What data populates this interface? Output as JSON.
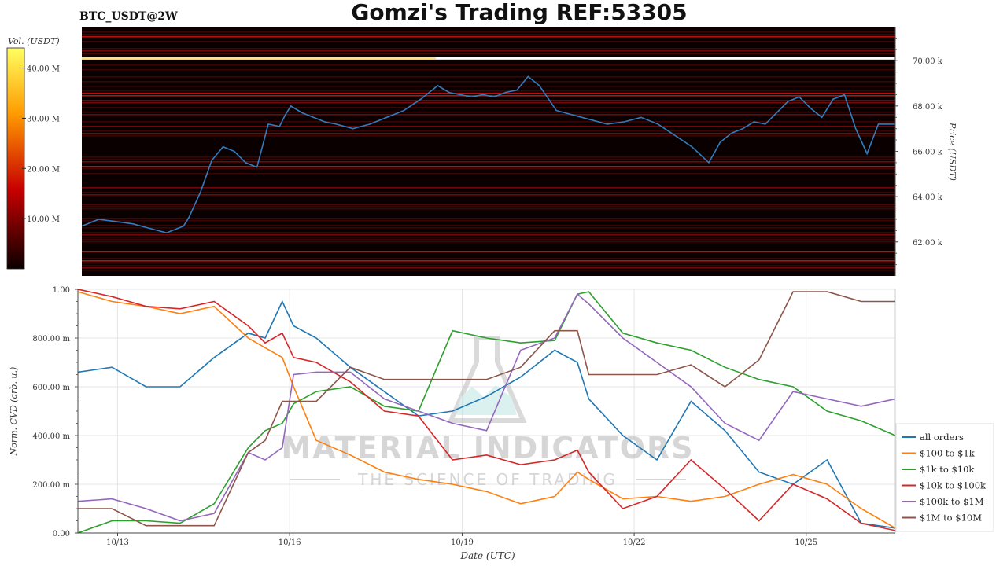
{
  "header": {
    "symbol": "BTC_USDT@2W",
    "title": "Gomzi's Trading REF:53305"
  },
  "watermark": {
    "line1": "MATERIAL INDICATORS",
    "line2": "THE SCIENCE OF TRADING"
  },
  "chart_data": [
    {
      "type": "heatmap",
      "title": "",
      "xlabel": "",
      "ylabel": "Price (USDT)",
      "ylim": [
        60500,
        71500
      ],
      "ytick_values": [
        62000,
        64000,
        66000,
        68000,
        70000
      ],
      "ytick_labels": [
        "62.00 k",
        "64.00 k",
        "66.00 k",
        "68.00 k",
        "70.00 k"
      ],
      "colorbar": {
        "label": "Vol. (USDT)",
        "range": [
          0,
          44000000
        ],
        "tick_values": [
          10000000,
          20000000,
          30000000,
          40000000
        ],
        "tick_labels": [
          "10.00 M",
          "20.00 M",
          "30.00 M",
          "40.00 M"
        ],
        "colormap": "hot"
      },
      "xlim": [
        0,
        14.4
      ],
      "price_series": {
        "name": "",
        "color": "#2f7ec1",
        "x": [
          0,
          0.3,
          0.6,
          0.9,
          1.2,
          1.5,
          1.8,
          1.9,
          2.1,
          2.3,
          2.5,
          2.7,
          2.9,
          3.1,
          3.3,
          3.5,
          3.6,
          3.7,
          3.9,
          4.1,
          4.3,
          4.5,
          4.8,
          5.1,
          5.4,
          5.7,
          6.0,
          6.3,
          6.5,
          6.7,
          6.9,
          7.1,
          7.3,
          7.5,
          7.7,
          7.9,
          8.1,
          8.4,
          8.7,
          9.0,
          9.3,
          9.6,
          9.9,
          10.2,
          10.5,
          10.8,
          11.1,
          11.3,
          11.5,
          11.7,
          11.9,
          12.1,
          12.3,
          12.5,
          12.7,
          12.9,
          13.1,
          13.3,
          13.5,
          13.7,
          13.9,
          14.1,
          14.4
        ],
        "y": [
          62700,
          63000,
          62900,
          62800,
          62600,
          62400,
          62700,
          63100,
          64200,
          65600,
          66200,
          66000,
          65500,
          65300,
          67200,
          67100,
          67600,
          68000,
          67700,
          67500,
          67300,
          67200,
          67000,
          67200,
          67500,
          67800,
          68300,
          68900,
          68600,
          68500,
          68400,
          68500,
          68400,
          68600,
          68700,
          69300,
          68900,
          67800,
          67600,
          67400,
          67200,
          67300,
          67500,
          67200,
          66700,
          66200,
          65500,
          66400,
          66800,
          67000,
          67300,
          67200,
          67700,
          68200,
          68400,
          67900,
          67500,
          68300,
          68500,
          67000,
          65900,
          67200,
          67200
        ]
      }
    },
    {
      "type": "line",
      "title": "",
      "xlabel": "Date (UTC)",
      "ylabel": "Norm. CVD (arb. u.)",
      "ylim": [
        0,
        1
      ],
      "xlim": [
        0,
        14.4
      ],
      "ytick_values": [
        0,
        0.2,
        0.4,
        0.6,
        0.8,
        1.0
      ],
      "ytick_labels": [
        "0.00",
        "200.00 m",
        "400.00 m",
        "600.00 m",
        "800.00 m",
        "1.00"
      ],
      "xtick_values": [
        0.7,
        3.73,
        6.77,
        9.8,
        12.83
      ],
      "xtick_labels": [
        "10/13",
        "10/16",
        "10/19",
        "10/22",
        "10/25"
      ],
      "grid": true,
      "legend_position": "bottom-right",
      "x": [
        0,
        0.6,
        1.2,
        1.8,
        2.4,
        3.0,
        3.3,
        3.6,
        3.8,
        4.2,
        4.8,
        5.4,
        6.0,
        6.6,
        7.2,
        7.8,
        8.4,
        8.8,
        9.0,
        9.6,
        10.2,
        10.8,
        11.4,
        12.0,
        12.6,
        13.2,
        13.8,
        14.4
      ],
      "series": [
        {
          "name": "all orders",
          "color": "#1f77b4",
          "values": [
            0.66,
            0.68,
            0.6,
            0.6,
            0.72,
            0.82,
            0.8,
            0.95,
            0.85,
            0.8,
            0.68,
            0.58,
            0.48,
            0.5,
            0.56,
            0.64,
            0.75,
            0.7,
            0.55,
            0.4,
            0.3,
            0.54,
            0.42,
            0.25,
            0.2,
            0.3,
            0.04,
            0.02
          ]
        },
        {
          "name": "$100 to $1k",
          "color": "#ff7f0e",
          "values": [
            0.99,
            0.95,
            0.93,
            0.9,
            0.93,
            0.8,
            0.76,
            0.72,
            0.6,
            0.38,
            0.32,
            0.25,
            0.22,
            0.2,
            0.17,
            0.12,
            0.15,
            0.25,
            0.22,
            0.14,
            0.15,
            0.13,
            0.15,
            0.2,
            0.24,
            0.2,
            0.1,
            0.02
          ]
        },
        {
          "name": "$1k to $10k",
          "color": "#2ca02c",
          "values": [
            0.0,
            0.05,
            0.05,
            0.04,
            0.12,
            0.35,
            0.42,
            0.45,
            0.53,
            0.58,
            0.6,
            0.52,
            0.5,
            0.83,
            0.8,
            0.78,
            0.79,
            0.98,
            0.99,
            0.82,
            0.78,
            0.75,
            0.68,
            0.63,
            0.6,
            0.5,
            0.46,
            0.4
          ]
        },
        {
          "name": "$10k to $100k",
          "color": "#d62728",
          "values": [
            1.0,
            0.97,
            0.93,
            0.92,
            0.95,
            0.85,
            0.78,
            0.82,
            0.72,
            0.7,
            0.62,
            0.5,
            0.48,
            0.3,
            0.32,
            0.28,
            0.3,
            0.34,
            0.25,
            0.1,
            0.15,
            0.3,
            0.18,
            0.05,
            0.2,
            0.14,
            0.04,
            0.01
          ]
        },
        {
          "name": "$100k to $1M",
          "color": "#9467bd",
          "values": [
            0.13,
            0.14,
            0.1,
            0.05,
            0.08,
            0.33,
            0.3,
            0.35,
            0.65,
            0.66,
            0.66,
            0.55,
            0.5,
            0.45,
            0.42,
            0.75,
            0.8,
            0.98,
            0.94,
            0.8,
            0.7,
            0.6,
            0.45,
            0.38,
            0.58,
            0.55,
            0.52,
            0.55
          ]
        },
        {
          "name": "$1M to $10M",
          "color": "#8c564b",
          "values": [
            0.1,
            0.1,
            0.03,
            0.03,
            0.03,
            0.33,
            0.38,
            0.54,
            0.54,
            0.54,
            0.68,
            0.63,
            0.63,
            0.63,
            0.63,
            0.68,
            0.83,
            0.83,
            0.65,
            0.65,
            0.65,
            0.69,
            0.6,
            0.71,
            0.99,
            0.99,
            0.95,
            0.95
          ]
        }
      ]
    }
  ]
}
